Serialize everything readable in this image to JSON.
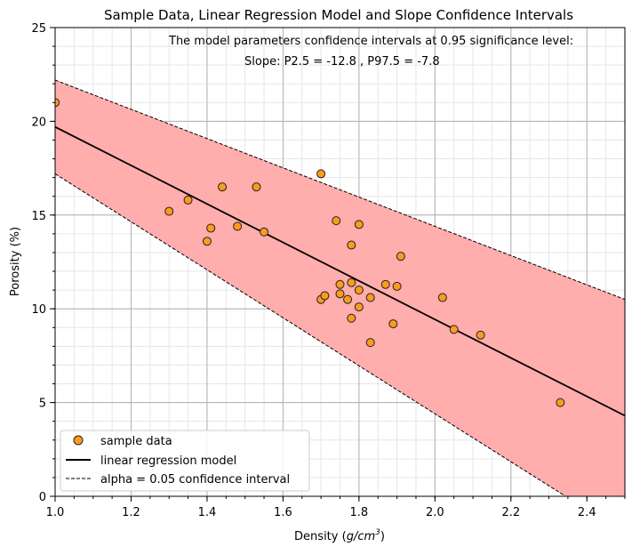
{
  "chart_data": {
    "type": "scatter",
    "title": "Sample Data, Linear Regression Model and Slope Confidence Intervals",
    "xlabel_main": "Density (",
    "xlabel_math": "g/cm",
    "xlabel_sup": "3",
    "xlabel_end": ")",
    "ylabel": "Porosity (%)",
    "xlim": [
      1.0,
      2.5
    ],
    "ylim": [
      0,
      25
    ],
    "xticks": [
      1.0,
      1.2,
      1.4,
      1.6,
      1.8,
      2.0,
      2.2,
      2.4
    ],
    "xtick_labels": [
      "1.0",
      "1.2",
      "1.4",
      "1.6",
      "1.8",
      "2.0",
      "2.2",
      "2.4"
    ],
    "yticks": [
      0,
      5,
      10,
      15,
      20,
      25
    ],
    "ytick_labels": [
      "0",
      "5",
      "10",
      "15",
      "20",
      "25"
    ],
    "grid": true,
    "legend_position": "lower-left",
    "annotations": [
      "The model parameters confidence intervals at 0.95 significance level:",
      "Slope: P2.5 = -12.8 , P97.5 = -7.8"
    ],
    "series": [
      {
        "name": "sample data",
        "kind": "scatter",
        "color": "#ff9a1e",
        "edge_color": "#222222",
        "points": [
          [
            1.0,
            21.0
          ],
          [
            1.3,
            15.2
          ],
          [
            1.35,
            15.8
          ],
          [
            1.41,
            14.3
          ],
          [
            1.4,
            13.6
          ],
          [
            1.44,
            16.5
          ],
          [
            1.48,
            14.4
          ],
          [
            1.53,
            16.5
          ],
          [
            1.55,
            14.1
          ],
          [
            1.7,
            17.2
          ],
          [
            1.7,
            10.5
          ],
          [
            1.71,
            10.7
          ],
          [
            1.74,
            14.7
          ],
          [
            1.75,
            11.3
          ],
          [
            1.75,
            10.8
          ],
          [
            1.77,
            10.5
          ],
          [
            1.78,
            9.5
          ],
          [
            1.78,
            11.4
          ],
          [
            1.78,
            13.4
          ],
          [
            1.8,
            14.5
          ],
          [
            1.8,
            11.0
          ],
          [
            1.8,
            10.1
          ],
          [
            1.83,
            8.2
          ],
          [
            1.83,
            10.6
          ],
          [
            1.87,
            11.3
          ],
          [
            1.89,
            9.2
          ],
          [
            1.9,
            11.2
          ],
          [
            1.91,
            12.8
          ],
          [
            2.02,
            10.6
          ],
          [
            2.05,
            8.9
          ],
          [
            2.12,
            8.6
          ],
          [
            2.33,
            5.0
          ]
        ]
      },
      {
        "name": "linear regression model",
        "kind": "line",
        "color": "#000000",
        "points": [
          [
            1.0,
            19.7
          ],
          [
            2.5,
            4.3
          ]
        ]
      },
      {
        "name": "alpha = 0.05 confidence interval",
        "kind": "dashed-band",
        "color": "#000000",
        "fill": "#ffadad",
        "upper": [
          [
            1.0,
            22.2
          ],
          [
            2.5,
            10.5
          ]
        ],
        "lower": [
          [
            1.0,
            17.2
          ],
          [
            2.5,
            -2.0
          ]
        ]
      }
    ]
  }
}
